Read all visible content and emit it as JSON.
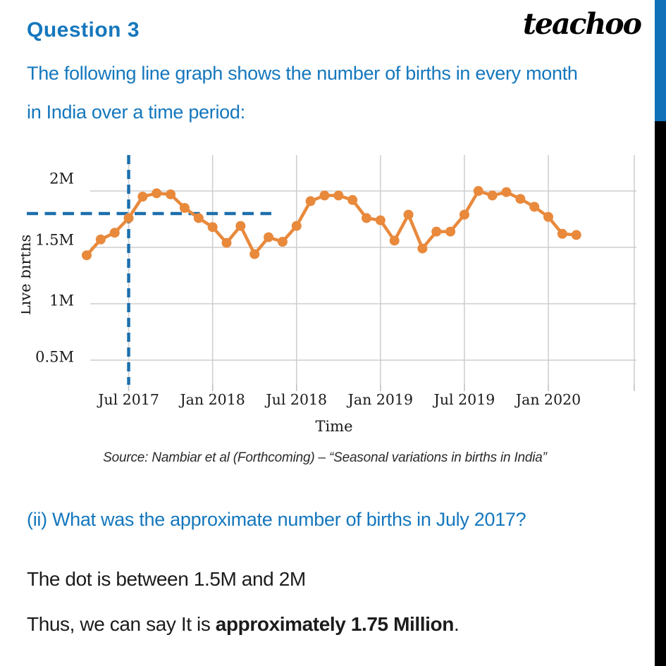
{
  "header": {
    "title": "Question 3",
    "logo": "teachoo"
  },
  "intro": {
    "line1": "The following line graph shows the number of births in every month",
    "line2": "in India over a time period:"
  },
  "question": {
    "text": "(ii) What was the approximate number of births in July 2017?"
  },
  "answer": {
    "line1": "The dot is between 1.5M and 2M",
    "line2_prefix": "Thus, we can say It is ",
    "line2_bold": "approximately 1.75 Million",
    "line2_suffix": "."
  },
  "colors": {
    "accent_blue": "#1477bd",
    "line_orange": "#e8893c",
    "dash_blue": "#1b6fad",
    "grid_gray": "#cdcdcd",
    "tick_gray": "#bdbdbd",
    "text_black": "#1c1c1c",
    "bar_blue": "#1070b8",
    "bar_black": "#000000"
  },
  "chart_data": {
    "type": "line",
    "title": "",
    "xlabel": "Time",
    "ylabel": "Live births",
    "source": "Source: Nambiar et al (Forthcoming) – “Seasonal variations in births in India”",
    "values_unit": "millions (M)",
    "grid": true,
    "ylim": [
      0.3,
      2.15
    ],
    "y_ticks": [
      {
        "label": "2M",
        "value": 2.0
      },
      {
        "label": "1.5M",
        "value": 1.5
      },
      {
        "label": "1M",
        "value": 1.0
      },
      {
        "label": "0.5M",
        "value": 0.5
      }
    ],
    "x_ticks": [
      {
        "label": "Jul 2017",
        "month_index": 3
      },
      {
        "label": "Jan 2018",
        "month_index": 9
      },
      {
        "label": "Jul 2018",
        "month_index": 15
      },
      {
        "label": "Jan 2019",
        "month_index": 21
      },
      {
        "label": "Jul 2019",
        "month_index": 27
      },
      {
        "label": "Jan 2020",
        "month_index": 33
      }
    ],
    "x": [
      "Apr 2017",
      "May 2017",
      "Jun 2017",
      "Jul 2017",
      "Aug 2017",
      "Sep 2017",
      "Oct 2017",
      "Nov 2017",
      "Dec 2017",
      "Jan 2018",
      "Feb 2018",
      "Mar 2018",
      "Apr 2018",
      "May 2018",
      "Jun 2018",
      "Jul 2018",
      "Aug 2018",
      "Sep 2018",
      "Oct 2018",
      "Nov 2018",
      "Dec 2018",
      "Jan 2019",
      "Feb 2019",
      "Mar 2019",
      "Apr 2019",
      "May 2019",
      "Jun 2019",
      "Jul 2019",
      "Aug 2019",
      "Sep 2019",
      "Oct 2019",
      "Nov 2019",
      "Dec 2019",
      "Jan 2020",
      "Feb 2020",
      "Mar 2020"
    ],
    "series": [
      {
        "name": "Live births per month (millions)",
        "values": [
          1.43,
          1.57,
          1.63,
          1.76,
          1.95,
          1.98,
          1.97,
          1.85,
          1.76,
          1.68,
          1.54,
          1.69,
          1.44,
          1.59,
          1.55,
          1.69,
          1.91,
          1.96,
          1.96,
          1.92,
          1.76,
          1.74,
          1.56,
          1.79,
          1.49,
          1.64,
          1.64,
          1.79,
          2.0,
          1.96,
          1.99,
          1.93,
          1.86,
          1.77,
          1.62,
          1.61
        ]
      }
    ],
    "annotation": {
      "kind": "dashed-crosshair",
      "month": "Jul 2017",
      "month_index": 3,
      "value": 1.8
    }
  }
}
